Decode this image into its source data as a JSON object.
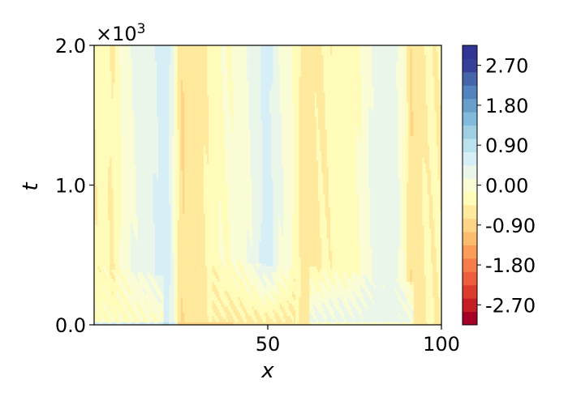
{
  "chart_data": {
    "type": "heatmap",
    "subtype": "filled-contour",
    "xlabel": "x",
    "ylabel": "t",
    "xlim": [
      0,
      100
    ],
    "ylim": [
      0,
      2000
    ],
    "x_ticks": [
      50,
      100
    ],
    "x_tick_labels": [
      "50",
      "100"
    ],
    "y_ticks": [
      0,
      1000,
      2000
    ],
    "y_tick_labels": [
      "0.0",
      "1.0",
      "2.0"
    ],
    "y_offset_text": "×10",
    "y_offset_exponent": "3",
    "colormap": "RdYlBu",
    "colorbar": {
      "min": -3.15,
      "max": 3.15,
      "ticks": [
        -2.7,
        -1.8,
        -0.9,
        0.0,
        0.9,
        1.8,
        2.7
      ],
      "tick_labels": [
        "-2.70",
        "-1.80",
        "-0.90",
        "0.00",
        "0.90",
        "1.80",
        "2.70"
      ],
      "levels": [
        -3.15,
        -2.85,
        -2.55,
        -2.25,
        -1.95,
        -1.65,
        -1.35,
        -1.05,
        -0.75,
        -0.45,
        -0.15,
        0.15,
        0.45,
        0.75,
        1.05,
        1.35,
        1.65,
        1.95,
        2.25,
        2.55,
        2.85,
        3.15
      ],
      "colors": [
        "#a50026",
        "#c41e27",
        "#dc3c2d",
        "#ed5e3c",
        "#f67c4a",
        "#fb9d59",
        "#fdbc6d",
        "#fed586",
        "#fee99d",
        "#fffbb9",
        "#f9fcd4",
        "#e9f6e9",
        "#d6eef5",
        "#bce1ee",
        "#a0cfe4",
        "#82badb",
        "#689fcb",
        "#5283bc",
        "#4465aa",
        "#383f98",
        "#313695"
      ]
    },
    "late_time_profile": {
      "x": [
        0,
        3,
        5,
        8,
        12,
        16,
        19,
        21,
        22.5,
        24,
        25.5,
        27,
        30,
        33,
        36,
        40,
        44,
        47,
        49,
        51,
        53,
        56,
        58.5,
        60,
        62,
        66,
        70,
        74,
        77,
        80,
        84,
        87,
        89.5,
        91,
        93,
        96,
        100
      ],
      "u": [
        -0.45,
        -0.25,
        -0.5,
        -0.1,
        0.2,
        0.3,
        0.55,
        0.6,
        0.25,
        -0.4,
        -0.8,
        -0.55,
        -0.6,
        -0.4,
        -0.2,
        -0.1,
        0.1,
        0.3,
        0.55,
        0.5,
        0.2,
        0.0,
        -0.3,
        -0.7,
        -0.55,
        -0.45,
        -0.35,
        -0.3,
        -0.1,
        0.2,
        0.3,
        0.25,
        -0.2,
        -0.75,
        -0.6,
        -0.4,
        -0.45
      ]
    },
    "transient": {
      "settle_time": 500,
      "regions": [
        {
          "x_start": 34,
          "x_end": 58,
          "t_end": 400,
          "u": -0.55
        },
        {
          "x_start": 62,
          "x_end": 92,
          "t_end": 300,
          "u": 0.3
        },
        {
          "x_start": 0,
          "x_end": 20,
          "t_end": 350,
          "u": -0.2
        }
      ],
      "initial_band": {
        "t_end": 25,
        "segments": [
          {
            "x_start": 0,
            "x_end": 24,
            "u": 1.0
          },
          {
            "x_start": 24,
            "x_end": 40,
            "u": -1.2
          },
          {
            "x_start": 40,
            "x_end": 100,
            "u": -0.5
          }
        ]
      }
    }
  }
}
